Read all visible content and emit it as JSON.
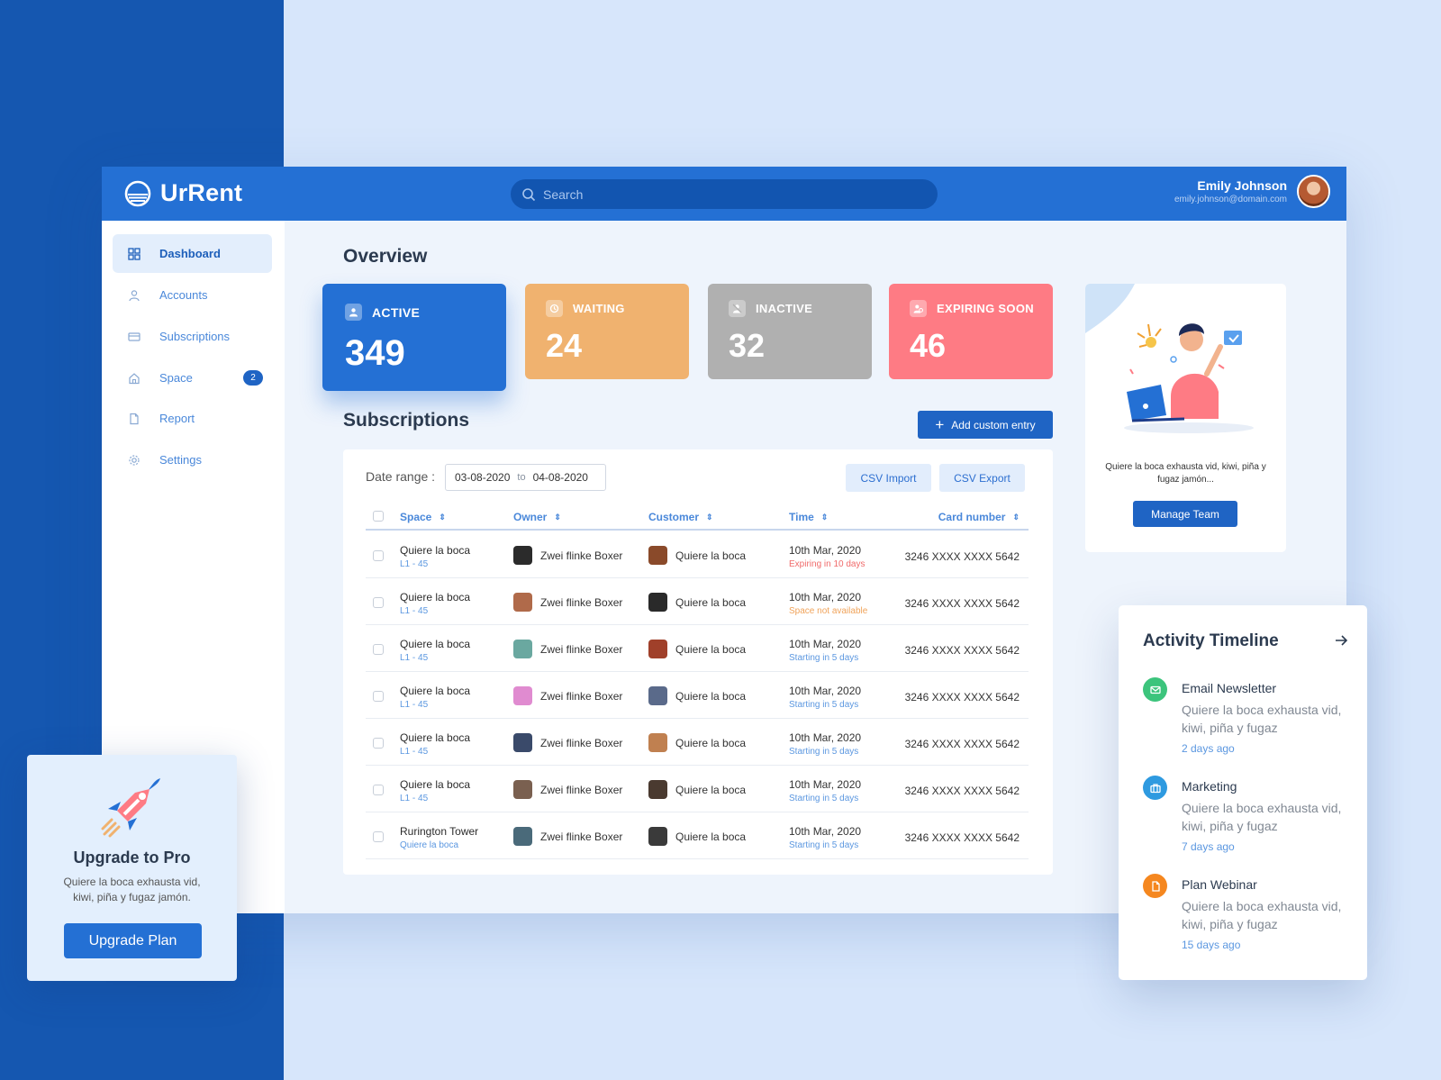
{
  "app": {
    "name": "UrRent"
  },
  "search": {
    "placeholder": "Search"
  },
  "user": {
    "name": "Emily Johnson",
    "email": "emily.johnson@domain.com"
  },
  "sidebar": {
    "items": [
      {
        "label": "Dashboard",
        "icon": "grid-icon",
        "active": true
      },
      {
        "label": "Accounts",
        "icon": "user-icon"
      },
      {
        "label": "Subscriptions",
        "icon": "card-icon"
      },
      {
        "label": "Space",
        "icon": "home-icon",
        "badge": "2"
      },
      {
        "label": "Report",
        "icon": "file-icon"
      },
      {
        "label": "Settings",
        "icon": "gear-icon"
      }
    ]
  },
  "overview": {
    "title": "Overview",
    "stats": [
      {
        "label": "ACTIVE",
        "value": "349",
        "color": "#2470d4"
      },
      {
        "label": "WAITING",
        "value": "24",
        "color": "#f0b26f"
      },
      {
        "label": "INACTIVE",
        "value": "32",
        "color": "#b0b0b0"
      },
      {
        "label": "EXPIRING SOON",
        "value": "46",
        "color": "#fe7b84"
      }
    ]
  },
  "subscriptions": {
    "title": "Subscriptions",
    "add_label": "Add custom entry",
    "date_label": "Date range :",
    "date_from": "03-08-2020",
    "date_to_sep": "to",
    "date_to": "04-08-2020",
    "csv_import": "CSV Import",
    "csv_export": "CSV Export",
    "columns": [
      "Space",
      "Owner",
      "Customer",
      "Time",
      "Card number"
    ],
    "rows": [
      {
        "space": "Quiere la boca",
        "space_sub": "L1 - 45",
        "owner": "Zwei flinke Boxer",
        "customer": "Quiere la boca",
        "time": "10th Mar, 2020",
        "status": "Expiring in 10 days",
        "status_color": "#f06a6a",
        "card": "3246 XXXX XXXX 5642"
      },
      {
        "space": "Quiere la boca",
        "space_sub": "L1 - 45",
        "owner": "Zwei flinke Boxer",
        "customer": "Quiere la boca",
        "time": "10th Mar, 2020",
        "status": "Space not available",
        "status_color": "#f0a35a",
        "card": "3246 XXXX XXXX 5642"
      },
      {
        "space": "Quiere la boca",
        "space_sub": "L1 - 45",
        "owner": "Zwei flinke Boxer",
        "customer": "Quiere la boca",
        "time": "10th Mar, 2020",
        "status": "Starting in 5 days",
        "status_color": "#5b97e0",
        "card": "3246 XXXX XXXX 5642"
      },
      {
        "space": "Quiere la boca",
        "space_sub": "L1 - 45",
        "owner": "Zwei flinke Boxer",
        "customer": "Quiere la boca",
        "time": "10th Mar, 2020",
        "status": "Starting in 5 days",
        "status_color": "#5b97e0",
        "card": "3246 XXXX XXXX 5642"
      },
      {
        "space": "Quiere la boca",
        "space_sub": "L1 - 45",
        "owner": "Zwei flinke Boxer",
        "customer": "Quiere la boca",
        "time": "10th Mar, 2020",
        "status": "Starting in 5 days",
        "status_color": "#5b97e0",
        "card": "3246 XXXX XXXX 5642"
      },
      {
        "space": "Quiere la boca",
        "space_sub": "L1 - 45",
        "owner": "Zwei flinke Boxer",
        "customer": "Quiere la boca",
        "time": "10th Mar, 2020",
        "status": "Starting in 5 days",
        "status_color": "#5b97e0",
        "card": "3246 XXXX XXXX 5642"
      },
      {
        "space": "Rurington Tower",
        "space_sub": "Quiere la boca",
        "owner": "Zwei flinke Boxer",
        "customer": "Quiere la boca",
        "time": "10th Mar, 2020",
        "status": "Starting in 5 days",
        "status_color": "#5b97e0",
        "card": "3246 XXXX XXXX 5642"
      }
    ]
  },
  "promo": {
    "text": "Quiere la boca exhausta vid, kiwi, piña y fugaz jamón...",
    "button": "Manage Team"
  },
  "upgrade": {
    "title": "Upgrade to Pro",
    "desc": "Quiere la boca exhausta vid, kiwi, piña y fugaz jamón.",
    "button": "Upgrade Plan"
  },
  "activity": {
    "title": "Activity Timeline",
    "items": [
      {
        "name": "Email Newsletter",
        "desc": "Quiere la boca exhausta vid, kiwi, piña y fugaz",
        "time": "2 days ago",
        "icon": "mail-icon",
        "color": "#3cc47c"
      },
      {
        "name": "Marketing",
        "desc": "Quiere la boca exhausta vid, kiwi, piña y fugaz",
        "time": "7 days ago",
        "icon": "briefcase-icon",
        "color": "#2e9ae0"
      },
      {
        "name": "Plan Webinar",
        "desc": "Quiere la boca exhausta vid, kiwi, piña y fugaz",
        "time": "15 days ago",
        "icon": "document-icon",
        "color": "#f5871f"
      }
    ]
  }
}
